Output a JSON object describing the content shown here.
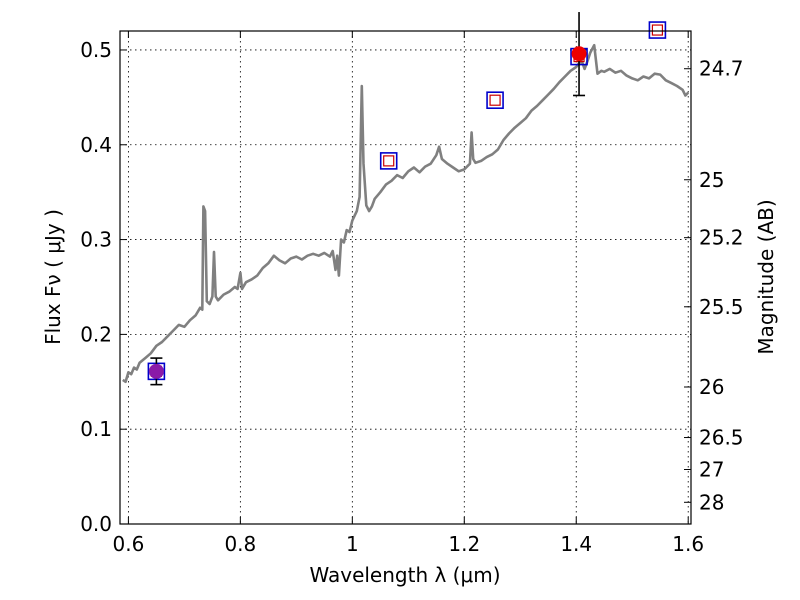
{
  "chart_data": {
    "type": "line",
    "title": "",
    "xlabel": "Wavelength  λ (μm)",
    "ylabel": "Flux  Fν  ( μJy )",
    "y2label": "Magnitude (AB)",
    "xlim": [
      0.585,
      1.605
    ],
    "ylim": [
      0.0,
      0.52
    ],
    "grid": true,
    "legend": "none",
    "xticks": [
      0.6,
      0.8,
      1.0,
      1.2,
      1.4,
      1.6
    ],
    "xtick_labels": [
      "0.6",
      "0.8",
      "1",
      "1.2",
      "1.4",
      "1.6"
    ],
    "yticks": [
      0.0,
      0.1,
      0.2,
      0.3,
      0.4,
      0.5
    ],
    "ytick_labels": [
      "0.0",
      "0.1",
      "0.2",
      "0.3",
      "0.4",
      "0.5"
    ],
    "y2ticks": [
      {
        "label": "24.7",
        "flux": 0.4802
      },
      {
        "label": "25",
        "flux": 0.3631
      },
      {
        "label": "25.2",
        "flux": 0.302
      },
      {
        "label": "25.5",
        "flux": 0.2291
      },
      {
        "label": "26",
        "flux": 0.1445
      },
      {
        "label": "26.5",
        "flux": 0.0912
      },
      {
        "label": "27",
        "flux": 0.0575
      },
      {
        "label": "28",
        "flux": 0.0229
      }
    ],
    "series": [
      {
        "kind": "spectrum",
        "color": "#808080",
        "points": [
          [
            0.59,
            0.152
          ],
          [
            0.595,
            0.15
          ],
          [
            0.6,
            0.16
          ],
          [
            0.605,
            0.158
          ],
          [
            0.61,
            0.165
          ],
          [
            0.615,
            0.163
          ],
          [
            0.62,
            0.17
          ],
          [
            0.63,
            0.175
          ],
          [
            0.64,
            0.18
          ],
          [
            0.65,
            0.188
          ],
          [
            0.66,
            0.192
          ],
          [
            0.67,
            0.198
          ],
          [
            0.68,
            0.204
          ],
          [
            0.69,
            0.21
          ],
          [
            0.7,
            0.208
          ],
          [
            0.71,
            0.215
          ],
          [
            0.72,
            0.22
          ],
          [
            0.728,
            0.228
          ],
          [
            0.732,
            0.226
          ],
          [
            0.734,
            0.335
          ],
          [
            0.737,
            0.33
          ],
          [
            0.74,
            0.235
          ],
          [
            0.745,
            0.232
          ],
          [
            0.75,
            0.24
          ],
          [
            0.753,
            0.287
          ],
          [
            0.756,
            0.24
          ],
          [
            0.76,
            0.236
          ],
          [
            0.77,
            0.242
          ],
          [
            0.78,
            0.245
          ],
          [
            0.79,
            0.25
          ],
          [
            0.795,
            0.248
          ],
          [
            0.8,
            0.265
          ],
          [
            0.803,
            0.248
          ],
          [
            0.81,
            0.255
          ],
          [
            0.82,
            0.258
          ],
          [
            0.83,
            0.262
          ],
          [
            0.84,
            0.27
          ],
          [
            0.85,
            0.275
          ],
          [
            0.86,
            0.283
          ],
          [
            0.87,
            0.278
          ],
          [
            0.88,
            0.275
          ],
          [
            0.89,
            0.28
          ],
          [
            0.9,
            0.282
          ],
          [
            0.91,
            0.279
          ],
          [
            0.92,
            0.283
          ],
          [
            0.93,
            0.285
          ],
          [
            0.94,
            0.283
          ],
          [
            0.95,
            0.286
          ],
          [
            0.96,
            0.282
          ],
          [
            0.965,
            0.288
          ],
          [
            0.97,
            0.268
          ],
          [
            0.973,
            0.283
          ],
          [
            0.976,
            0.262
          ],
          [
            0.98,
            0.3
          ],
          [
            0.985,
            0.297
          ],
          [
            0.99,
            0.31
          ],
          [
            0.995,
            0.308
          ],
          [
            1.0,
            0.32
          ],
          [
            1.008,
            0.33
          ],
          [
            1.013,
            0.345
          ],
          [
            1.017,
            0.462
          ],
          [
            1.02,
            0.38
          ],
          [
            1.025,
            0.336
          ],
          [
            1.03,
            0.33
          ],
          [
            1.035,
            0.335
          ],
          [
            1.04,
            0.343
          ],
          [
            1.05,
            0.35
          ],
          [
            1.06,
            0.358
          ],
          [
            1.07,
            0.362
          ],
          [
            1.08,
            0.368
          ],
          [
            1.09,
            0.365
          ],
          [
            1.1,
            0.372
          ],
          [
            1.11,
            0.376
          ],
          [
            1.12,
            0.371
          ],
          [
            1.13,
            0.377
          ],
          [
            1.14,
            0.38
          ],
          [
            1.15,
            0.389
          ],
          [
            1.155,
            0.398
          ],
          [
            1.16,
            0.385
          ],
          [
            1.17,
            0.38
          ],
          [
            1.18,
            0.376
          ],
          [
            1.19,
            0.372
          ],
          [
            1.2,
            0.374
          ],
          [
            1.21,
            0.38
          ],
          [
            1.213,
            0.413
          ],
          [
            1.216,
            0.385
          ],
          [
            1.22,
            0.381
          ],
          [
            1.23,
            0.383
          ],
          [
            1.24,
            0.387
          ],
          [
            1.25,
            0.39
          ],
          [
            1.26,
            0.395
          ],
          [
            1.27,
            0.405
          ],
          [
            1.28,
            0.412
          ],
          [
            1.29,
            0.418
          ],
          [
            1.3,
            0.423
          ],
          [
            1.31,
            0.428
          ],
          [
            1.32,
            0.436
          ],
          [
            1.33,
            0.441
          ],
          [
            1.34,
            0.447
          ],
          [
            1.35,
            0.453
          ],
          [
            1.36,
            0.459
          ],
          [
            1.37,
            0.466
          ],
          [
            1.38,
            0.472
          ],
          [
            1.39,
            0.478
          ],
          [
            1.4,
            0.482
          ],
          [
            1.405,
            0.486
          ],
          [
            1.41,
            0.488
          ],
          [
            1.415,
            0.48
          ],
          [
            1.42,
            0.488
          ],
          [
            1.425,
            0.497
          ],
          [
            1.432,
            0.505
          ],
          [
            1.438,
            0.475
          ],
          [
            1.445,
            0.478
          ],
          [
            1.45,
            0.477
          ],
          [
            1.46,
            0.48
          ],
          [
            1.47,
            0.476
          ],
          [
            1.48,
            0.478
          ],
          [
            1.49,
            0.473
          ],
          [
            1.5,
            0.47
          ],
          [
            1.51,
            0.468
          ],
          [
            1.52,
            0.472
          ],
          [
            1.53,
            0.47
          ],
          [
            1.54,
            0.475
          ],
          [
            1.55,
            0.474
          ],
          [
            1.56,
            0.468
          ],
          [
            1.57,
            0.465
          ],
          [
            1.58,
            0.462
          ],
          [
            1.59,
            0.458
          ],
          [
            1.595,
            0.452
          ],
          [
            1.6,
            0.455
          ]
        ]
      },
      {
        "kind": "model_photometry",
        "marker": "square",
        "outer_color": "#0000cc",
        "inner_color": "#cc0000",
        "points": [
          [
            0.65,
            0.161
          ],
          [
            1.065,
            0.383
          ],
          [
            1.255,
            0.447
          ],
          [
            1.405,
            0.493
          ],
          [
            1.545,
            0.521
          ]
        ]
      },
      {
        "kind": "observed_photometry",
        "marker": "circle",
        "points": [
          {
            "x": 0.65,
            "y": 0.161,
            "err_low": 0.147,
            "err_high": 0.175,
            "color": "#8a1aa8"
          },
          {
            "x": 1.405,
            "y": 0.496,
            "err_low": 0.452,
            "err_high": 0.54,
            "color": "#ee0000"
          }
        ]
      }
    ]
  }
}
